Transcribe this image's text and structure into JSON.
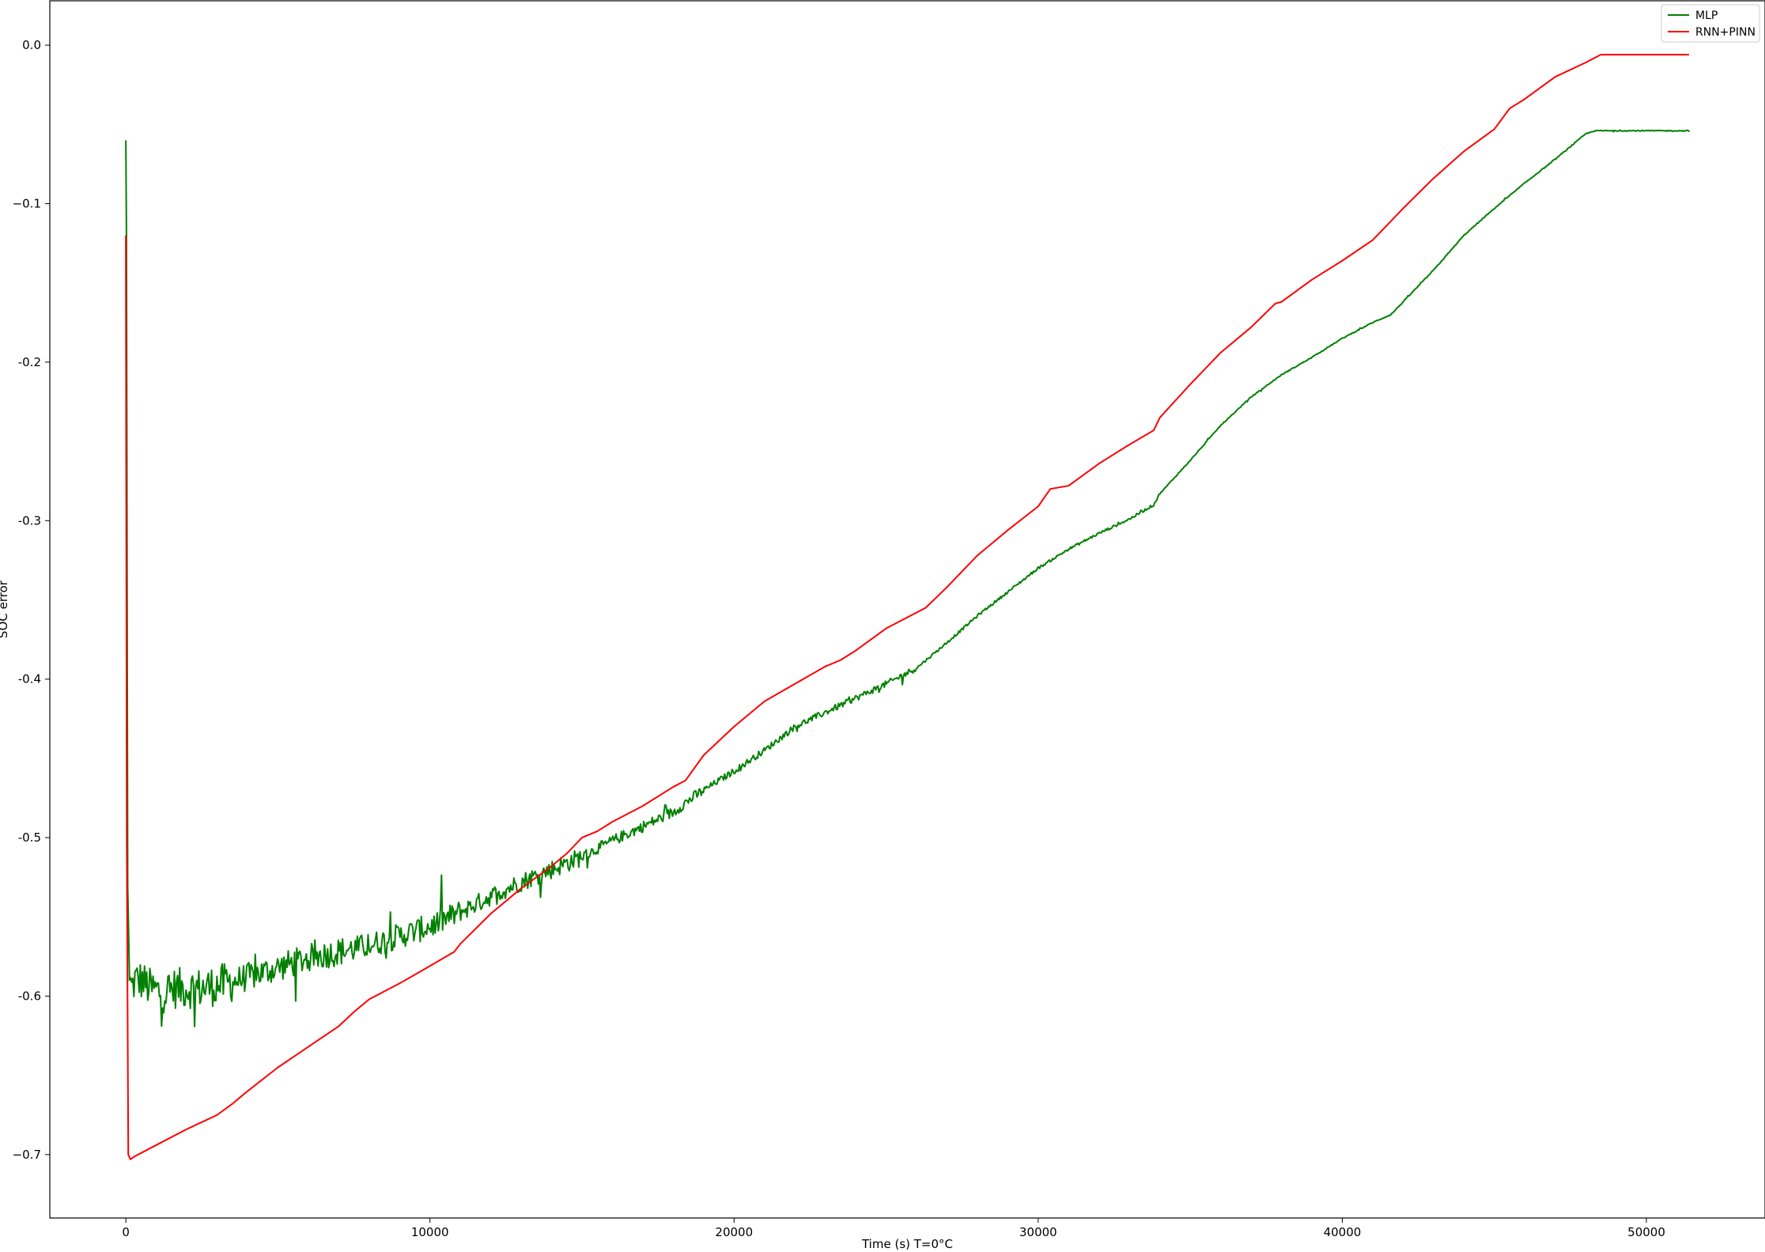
{
  "chart_data": {
    "type": "line",
    "title": "",
    "xlabel": "Time (s) T=0°C",
    "ylabel": "SOC error",
    "xlim": [
      -2500,
      53900
    ],
    "ylim": [
      -0.74,
      0.028
    ],
    "xticks": [
      0,
      10000,
      20000,
      30000,
      40000,
      50000
    ],
    "xtick_labels": [
      "0",
      "10000",
      "20000",
      "30000",
      "40000",
      "50000"
    ],
    "yticks": [
      0.0,
      -0.1,
      -0.2,
      -0.3,
      -0.4,
      -0.5,
      -0.6,
      -0.7
    ],
    "ytick_labels": [
      "0.0",
      "−0.1",
      "-0.2",
      "-0.3",
      "-0.4",
      "-0.5",
      "-0.6",
      "−0.7"
    ],
    "grid": false,
    "legend_position": "top-right",
    "series": [
      {
        "name": "MLP",
        "color": "#008000",
        "noisy": true,
        "x": [
          0,
          20,
          60,
          120,
          200,
          300,
          500,
          800,
          1200,
          1600,
          2000,
          2500,
          3000,
          3500,
          4000,
          5000,
          6000,
          7000,
          8000,
          9000,
          10000,
          11000,
          12000,
          13000,
          14000,
          15000,
          16000,
          17000,
          18000,
          18400,
          19000,
          20000,
          21000,
          22000,
          23000,
          24000,
          25000,
          26000,
          27000,
          28000,
          29000,
          30000,
          31000,
          32000,
          33000,
          33800,
          34000,
          35000,
          36000,
          37000,
          38000,
          39000,
          40000,
          41000,
          41600,
          42000,
          43000,
          44000,
          45000,
          46000,
          47000,
          48000,
          48300,
          49000,
          50000,
          51000,
          51400
        ],
        "y": [
          -0.06,
          -0.12,
          -0.53,
          -0.59,
          -0.595,
          -0.59,
          -0.59,
          -0.595,
          -0.598,
          -0.595,
          -0.595,
          -0.595,
          -0.593,
          -0.591,
          -0.588,
          -0.582,
          -0.576,
          -0.572,
          -0.568,
          -0.562,
          -0.556,
          -0.547,
          -0.537,
          -0.528,
          -0.52,
          -0.512,
          -0.502,
          -0.493,
          -0.484,
          -0.478,
          -0.47,
          -0.458,
          -0.445,
          -0.43,
          -0.421,
          -0.412,
          -0.403,
          -0.393,
          -0.377,
          -0.36,
          -0.345,
          -0.33,
          -0.318,
          -0.308,
          -0.299,
          -0.29,
          -0.283,
          -0.262,
          -0.24,
          -0.222,
          -0.208,
          -0.197,
          -0.185,
          -0.175,
          -0.17,
          -0.162,
          -0.142,
          -0.12,
          -0.103,
          -0.087,
          -0.072,
          -0.056,
          -0.054,
          -0.054,
          -0.054,
          -0.054,
          -0.054
        ]
      },
      {
        "name": "RNN+PINN",
        "color": "#ff0000",
        "noisy": false,
        "x": [
          0,
          30,
          80,
          150,
          300,
          1000,
          2000,
          3000,
          3500,
          4000,
          5000,
          6000,
          7000,
          7500,
          8000,
          9000,
          10000,
          10800,
          11000,
          12000,
          13000,
          14000,
          14500,
          15000,
          15500,
          16000,
          17000,
          18000,
          18400,
          19000,
          20000,
          21000,
          22000,
          23000,
          23500,
          24000,
          25000,
          26000,
          26300,
          27000,
          28000,
          29000,
          30000,
          30400,
          31000,
          32000,
          33000,
          33800,
          34000,
          35000,
          36000,
          37000,
          37800,
          38000,
          39000,
          40000,
          41000,
          42000,
          43000,
          44000,
          45000,
          45500,
          46000,
          47000,
          48000,
          48500,
          50000,
          51400
        ],
        "y": [
          -0.12,
          -0.5,
          -0.7,
          -0.703,
          -0.701,
          -0.694,
          -0.684,
          -0.675,
          -0.668,
          -0.66,
          -0.645,
          -0.632,
          -0.619,
          -0.61,
          -0.602,
          -0.592,
          -0.581,
          -0.572,
          -0.567,
          -0.548,
          -0.532,
          -0.518,
          -0.51,
          -0.5,
          -0.496,
          -0.49,
          -0.48,
          -0.468,
          -0.464,
          -0.448,
          -0.43,
          -0.414,
          -0.403,
          -0.392,
          -0.388,
          -0.382,
          -0.368,
          -0.358,
          -0.355,
          -0.342,
          -0.322,
          -0.306,
          -0.291,
          -0.28,
          -0.278,
          -0.264,
          -0.252,
          -0.243,
          -0.235,
          -0.214,
          -0.194,
          -0.178,
          -0.163,
          -0.162,
          -0.148,
          -0.136,
          -0.123,
          -0.103,
          -0.084,
          -0.067,
          -0.053,
          -0.04,
          -0.034,
          -0.02,
          -0.011,
          -0.006,
          -0.006,
          -0.006
        ]
      }
    ]
  }
}
